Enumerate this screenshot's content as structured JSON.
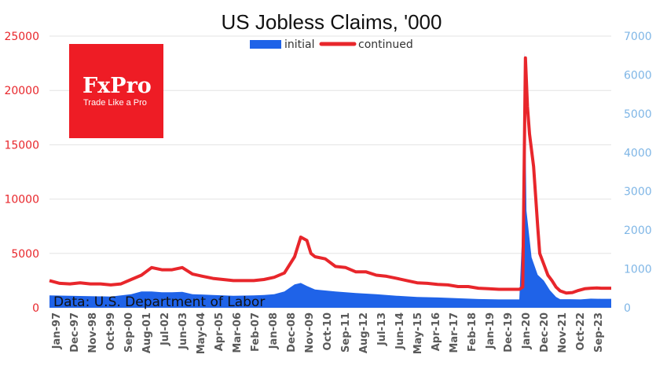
{
  "chart_data": {
    "type": "area+line",
    "title": "US Jobless Claims, '000",
    "legend": [
      "initial",
      "continued"
    ],
    "legend_position": "top-center",
    "grid": "horizontal",
    "source_note": "Data: U.S. Department of Labor",
    "y_left_ticks": [
      "0",
      "5000",
      "10000",
      "15000",
      "20000",
      "25000"
    ],
    "y_left_range": [
      0,
      25000
    ],
    "y_right_ticks": [
      "0",
      "1000",
      "2000",
      "3000",
      "4000",
      "5000",
      "6000",
      "7000"
    ],
    "y_right_range": [
      0,
      7000
    ],
    "x_tick_labels": [
      "Jan-97",
      "Dec-97",
      "Nov-98",
      "Oct-99",
      "Sep-00",
      "Aug-01",
      "Jul-02",
      "Jun-03",
      "May-04",
      "Apr-05",
      "Mar-06",
      "Feb-07",
      "Jan-08",
      "Dec-08",
      "Nov-09",
      "Oct-10",
      "Sep-11",
      "Aug-12",
      "Jul-13",
      "Jun-14",
      "May-15",
      "Apr-16",
      "Mar-17",
      "Feb-18",
      "Jan-19",
      "Dec-19",
      "Jan-20",
      "Dec-20",
      "Nov-21",
      "Oct-22",
      "Sep-23"
    ],
    "x_range": [
      1997.0,
      2024.5
    ],
    "series": [
      {
        "name": "initial",
        "axis": "right",
        "style": "area",
        "color": "#1f63e8",
        "points": [
          [
            1997.0,
            320
          ],
          [
            1998.0,
            310
          ],
          [
            1999.0,
            300
          ],
          [
            2000.0,
            290
          ],
          [
            2001.0,
            350
          ],
          [
            2001.5,
            420
          ],
          [
            2002.0,
            420
          ],
          [
            2002.5,
            400
          ],
          [
            2003.0,
            400
          ],
          [
            2003.5,
            410
          ],
          [
            2004.0,
            350
          ],
          [
            2005.0,
            330
          ],
          [
            2006.0,
            310
          ],
          [
            2007.0,
            320
          ],
          [
            2007.5,
            330
          ],
          [
            2008.0,
            350
          ],
          [
            2008.5,
            420
          ],
          [
            2009.0,
            600
          ],
          [
            2009.3,
            640
          ],
          [
            2009.6,
            560
          ],
          [
            2010.0,
            470
          ],
          [
            2011.0,
            420
          ],
          [
            2012.0,
            380
          ],
          [
            2013.0,
            350
          ],
          [
            2014.0,
            310
          ],
          [
            2015.0,
            280
          ],
          [
            2016.0,
            265
          ],
          [
            2017.0,
            245
          ],
          [
            2018.0,
            225
          ],
          [
            2019.0,
            215
          ],
          [
            2020.0,
            215
          ],
          [
            2020.15,
            2000
          ],
          [
            2020.25,
            6600
          ],
          [
            2020.35,
            2500
          ],
          [
            2020.6,
            1300
          ],
          [
            2020.9,
            850
          ],
          [
            2021.2,
            700
          ],
          [
            2021.5,
            450
          ],
          [
            2021.8,
            280
          ],
          [
            2022.0,
            220
          ],
          [
            2022.5,
            220
          ],
          [
            2023.0,
            215
          ],
          [
            2023.5,
            235
          ],
          [
            2024.0,
            230
          ],
          [
            2024.5,
            230
          ]
        ]
      },
      {
        "name": "continued",
        "axis": "left",
        "style": "line",
        "color": "#e8262b",
        "points": [
          [
            1997.0,
            2500
          ],
          [
            1997.5,
            2250
          ],
          [
            1998.0,
            2200
          ],
          [
            1998.5,
            2300
          ],
          [
            1999.0,
            2200
          ],
          [
            1999.5,
            2200
          ],
          [
            2000.0,
            2100
          ],
          [
            2000.5,
            2200
          ],
          [
            2001.0,
            2600
          ],
          [
            2001.5,
            3000
          ],
          [
            2002.0,
            3700
          ],
          [
            2002.5,
            3500
          ],
          [
            2003.0,
            3500
          ],
          [
            2003.5,
            3700
          ],
          [
            2004.0,
            3100
          ],
          [
            2004.5,
            2900
          ],
          [
            2005.0,
            2700
          ],
          [
            2005.5,
            2600
          ],
          [
            2006.0,
            2500
          ],
          [
            2006.5,
            2500
          ],
          [
            2007.0,
            2500
          ],
          [
            2007.5,
            2600
          ],
          [
            2008.0,
            2800
          ],
          [
            2008.5,
            3200
          ],
          [
            2009.0,
            4700
          ],
          [
            2009.3,
            6500
          ],
          [
            2009.6,
            6200
          ],
          [
            2009.8,
            5000
          ],
          [
            2010.0,
            4700
          ],
          [
            2010.5,
            4500
          ],
          [
            2011.0,
            3800
          ],
          [
            2011.5,
            3700
          ],
          [
            2012.0,
            3300
          ],
          [
            2012.5,
            3300
          ],
          [
            2013.0,
            3000
          ],
          [
            2013.5,
            2900
          ],
          [
            2014.0,
            2700
          ],
          [
            2014.5,
            2500
          ],
          [
            2015.0,
            2300
          ],
          [
            2015.5,
            2250
          ],
          [
            2016.0,
            2150
          ],
          [
            2016.5,
            2100
          ],
          [
            2017.0,
            1950
          ],
          [
            2017.5,
            1950
          ],
          [
            2018.0,
            1800
          ],
          [
            2018.5,
            1750
          ],
          [
            2019.0,
            1700
          ],
          [
            2019.5,
            1700
          ],
          [
            2020.0,
            1700
          ],
          [
            2020.17,
            1900
          ],
          [
            2020.22,
            10000
          ],
          [
            2020.3,
            23000
          ],
          [
            2020.4,
            18500
          ],
          [
            2020.5,
            16000
          ],
          [
            2020.7,
            13000
          ],
          [
            2020.9,
            7500
          ],
          [
            2021.0,
            5000
          ],
          [
            2021.2,
            4000
          ],
          [
            2021.4,
            3000
          ],
          [
            2021.6,
            2500
          ],
          [
            2021.8,
            1900
          ],
          [
            2022.0,
            1550
          ],
          [
            2022.3,
            1350
          ],
          [
            2022.6,
            1400
          ],
          [
            2022.9,
            1600
          ],
          [
            2023.2,
            1750
          ],
          [
            2023.5,
            1800
          ],
          [
            2023.8,
            1820
          ],
          [
            2024.0,
            1800
          ],
          [
            2024.5,
            1800
          ]
        ]
      }
    ]
  },
  "branding": {
    "logo_text": "FxPro",
    "logo_tagline": "Trade Like a Pro",
    "logo_color": "#ee1c25"
  }
}
